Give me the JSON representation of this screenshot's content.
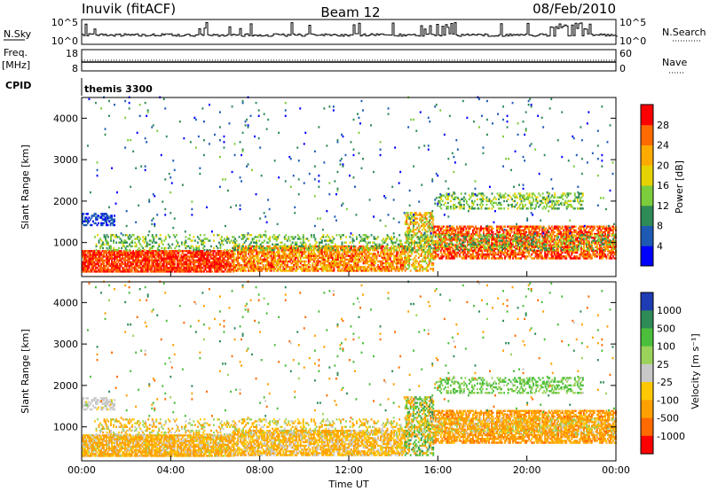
{
  "header": {
    "station": "Inuvik (fitACF)",
    "beam": "Beam 12",
    "date": "08/Feb/2010"
  },
  "param_panels": {
    "nsky_label": "N.Sky",
    "nsky_ticks": [
      "10^5",
      "10^0"
    ],
    "nsearch_label": "N.Search",
    "nsearch_ticks": [
      "10^5",
      "10^0"
    ],
    "freq_label_line1": "Freq.",
    "freq_label_line2": "[MHz]",
    "freq_ticks": [
      "18",
      "8"
    ],
    "nave_label": "Nave",
    "nave_ticks": [
      "60",
      "0"
    ],
    "cpid_label": "CPID",
    "cpid_value": "themis 3300"
  },
  "chart_data": [
    {
      "type": "heatmap",
      "name": "power",
      "ylabel": "Slant Range [km]",
      "xlabel": "",
      "x_ticks": [
        "00:00",
        "04:00",
        "08:00",
        "12:00",
        "16:00",
        "20:00",
        "00:00"
      ],
      "x_range_hours": [
        0,
        24
      ],
      "y_ticks": [
        "1000",
        "2000",
        "3000",
        "4000"
      ],
      "y_range_km": [
        180,
        4500
      ],
      "colorbar": {
        "label": "Power [dB]",
        "ticks": [
          "4",
          "8",
          "12",
          "16",
          "20",
          "24",
          "28"
        ],
        "range": [
          0,
          32
        ],
        "colors": [
          "#0000ff",
          "#1e5ab4",
          "#2e8b57",
          "#7ccd3c",
          "#e6d200",
          "#ffaa00",
          "#ff6a00",
          "#ff0000"
        ]
      },
      "regions": [
        {
          "t0": 0.0,
          "t1": 6.8,
          "r0": 280,
          "r1": 800,
          "value_range": [
            24,
            32
          ],
          "density": 0.85
        },
        {
          "t0": 6.8,
          "t1": 14.5,
          "r0": 300,
          "r1": 900,
          "value_range": [
            18,
            30
          ],
          "density": 0.75
        },
        {
          "t0": 14.5,
          "t1": 15.8,
          "r0": 300,
          "r1": 1700,
          "value_range": [
            12,
            28
          ],
          "density": 0.55
        },
        {
          "t0": 15.8,
          "t1": 24.0,
          "r0": 600,
          "r1": 1400,
          "value_range": [
            22,
            32
          ],
          "density": 0.7
        },
        {
          "t0": 16.0,
          "t1": 22.5,
          "r0": 1800,
          "r1": 2200,
          "value_range": [
            10,
            18
          ],
          "density": 0.35
        },
        {
          "t0": 0.0,
          "t1": 1.5,
          "r0": 1400,
          "r1": 1700,
          "value_range": [
            2,
            8
          ],
          "density": 0.5
        },
        {
          "t0": 0.5,
          "t1": 24.0,
          "r0": 800,
          "r1": 1200,
          "value_range": [
            8,
            18
          ],
          "density": 0.3
        },
        {
          "t0": 0.0,
          "t1": 24.0,
          "r0": 1200,
          "r1": 4500,
          "value_range": [
            2,
            14
          ],
          "density": 0.015
        }
      ]
    },
    {
      "type": "heatmap",
      "name": "velocity",
      "ylabel": "Slant Range [km]",
      "xlabel": "Time UT",
      "x_ticks": [
        "00:00",
        "04:00",
        "08:00",
        "12:00",
        "16:00",
        "20:00",
        "00:00"
      ],
      "x_range_hours": [
        0,
        24
      ],
      "y_ticks": [
        "1000",
        "2000",
        "3000",
        "4000"
      ],
      "y_range_km": [
        180,
        4500
      ],
      "colorbar": {
        "label": "Velocity [m s⁻¹]",
        "ticks": [
          "1000",
          "500",
          "100",
          "25",
          "-25",
          "-100",
          "-500",
          "-1000"
        ],
        "colors": [
          "#1e3cb4",
          "#2e8b57",
          "#4bbf3c",
          "#9ad25a",
          "#c8c8c8",
          "#ffc800",
          "#ffa000",
          "#ff6a00",
          "#ff0000"
        ]
      },
      "regions": [
        {
          "t0": 0.0,
          "t1": 6.8,
          "r0": 280,
          "r1": 800,
          "value_range": [
            -300,
            40
          ],
          "density": 0.85
        },
        {
          "t0": 6.8,
          "t1": 14.5,
          "r0": 300,
          "r1": 900,
          "value_range": [
            -200,
            30
          ],
          "density": 0.75
        },
        {
          "t0": 14.5,
          "t1": 15.8,
          "r0": 300,
          "r1": 1700,
          "value_range": [
            -400,
            600
          ],
          "density": 0.55
        },
        {
          "t0": 15.8,
          "t1": 24.0,
          "r0": 600,
          "r1": 1400,
          "value_range": [
            -600,
            -50
          ],
          "density": 0.7
        },
        {
          "t0": 16.0,
          "t1": 22.5,
          "r0": 1800,
          "r1": 2200,
          "value_range": [
            20,
            200
          ],
          "density": 0.35
        },
        {
          "t0": 0.0,
          "t1": 1.5,
          "r0": 1400,
          "r1": 1700,
          "value_range": [
            -30,
            30
          ],
          "density": 0.5
        },
        {
          "t0": 0.5,
          "t1": 24.0,
          "r0": 800,
          "r1": 1200,
          "value_range": [
            -200,
            100
          ],
          "density": 0.3
        },
        {
          "t0": 0.0,
          "t1": 24.0,
          "r0": 1200,
          "r1": 4500,
          "value_range": [
            -800,
            800
          ],
          "density": 0.015
        }
      ]
    }
  ]
}
